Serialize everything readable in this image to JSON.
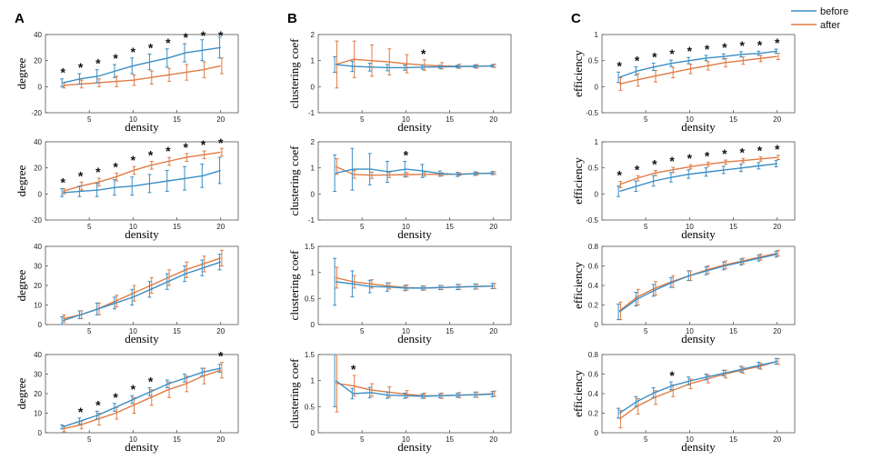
{
  "figure": {
    "panel_labels": [
      "A",
      "B",
      "C"
    ],
    "legend": [
      {
        "label": "before",
        "color": "#3b8ec4"
      },
      {
        "label": "after",
        "color": "#e07b45"
      }
    ]
  },
  "chart_data": [
    {
      "type": "line",
      "row": 0,
      "col": 0,
      "xlabel": "density",
      "ylabel": "degree",
      "ylim": [
        -20,
        40
      ],
      "yticks": [
        -20,
        0,
        20,
        40
      ],
      "xticks": [
        5,
        10,
        15,
        20
      ],
      "x": [
        2,
        4,
        6,
        8,
        10,
        12,
        14,
        16,
        18,
        20
      ],
      "series": [
        {
          "name": "before",
          "values": [
            3,
            6,
            8,
            12,
            16,
            19,
            22,
            26,
            28,
            30
          ],
          "err": [
            3,
            4,
            5,
            5,
            6,
            6,
            7,
            7,
            8,
            8
          ]
        },
        {
          "name": "after",
          "values": [
            1,
            2,
            3,
            4,
            5,
            7,
            9,
            11,
            13,
            16
          ],
          "err": [
            2,
            3,
            3,
            4,
            4,
            5,
            5,
            6,
            6,
            6
          ]
        }
      ],
      "stars": [
        2,
        4,
        6,
        8,
        10,
        12,
        14,
        16,
        18,
        20
      ]
    },
    {
      "type": "line",
      "row": 0,
      "col": 1,
      "xlabel": "density",
      "ylabel": "clustering coef",
      "ylim": [
        -1,
        2
      ],
      "yticks": [
        -1,
        0,
        1,
        2
      ],
      "xticks": [
        5,
        10,
        15,
        20
      ],
      "x": [
        2,
        4,
        6,
        8,
        10,
        12,
        14,
        16,
        18,
        20
      ],
      "series": [
        {
          "name": "before",
          "values": [
            0.85,
            0.78,
            0.75,
            0.73,
            0.73,
            0.75,
            0.76,
            0.77,
            0.78,
            0.8
          ],
          "err": [
            0.3,
            0.2,
            0.15,
            0.12,
            0.1,
            0.08,
            0.06,
            0.05,
            0.05,
            0.05
          ]
        },
        {
          "name": "after",
          "values": [
            0.85,
            1.05,
            1.0,
            0.95,
            0.88,
            0.83,
            0.8,
            0.78,
            0.78,
            0.8
          ],
          "err": [
            0.9,
            0.7,
            0.6,
            0.5,
            0.35,
            0.2,
            0.12,
            0.08,
            0.07,
            0.06
          ]
        }
      ],
      "stars": [
        12
      ]
    },
    {
      "type": "line",
      "row": 0,
      "col": 2,
      "xlabel": "density",
      "ylabel": "efficiency",
      "ylim": [
        -0.5,
        1
      ],
      "yticks": [
        -0.5,
        0,
        0.5,
        1
      ],
      "xticks": [
        5,
        10,
        15,
        20
      ],
      "x": [
        2,
        4,
        6,
        8,
        10,
        12,
        14,
        16,
        18,
        20
      ],
      "series": [
        {
          "name": "before",
          "values": [
            0.18,
            0.3,
            0.38,
            0.45,
            0.5,
            0.55,
            0.58,
            0.62,
            0.64,
            0.68
          ],
          "err": [
            0.1,
            0.08,
            0.07,
            0.06,
            0.06,
            0.05,
            0.05,
            0.05,
            0.04,
            0.04
          ]
        },
        {
          "name": "after",
          "values": [
            0.05,
            0.13,
            0.2,
            0.27,
            0.34,
            0.4,
            0.46,
            0.5,
            0.54,
            0.58
          ],
          "err": [
            0.12,
            0.12,
            0.11,
            0.1,
            0.09,
            0.08,
            0.08,
            0.07,
            0.06,
            0.06
          ]
        }
      ],
      "stars": [
        2,
        4,
        6,
        8,
        10,
        12,
        14,
        16,
        18,
        20
      ]
    },
    {
      "type": "line",
      "row": 1,
      "col": 0,
      "xlabel": "density",
      "ylabel": "degree",
      "ylim": [
        -20,
        40
      ],
      "yticks": [
        -20,
        0,
        20,
        40
      ],
      "xticks": [
        5,
        10,
        15,
        20
      ],
      "x": [
        2,
        4,
        6,
        8,
        10,
        12,
        14,
        16,
        18,
        20
      ],
      "series": [
        {
          "name": "before",
          "values": [
            1,
            2,
            3,
            5,
            6,
            8,
            10,
            12,
            14,
            18
          ],
          "err": [
            3,
            4,
            5,
            6,
            7,
            7,
            8,
            9,
            9,
            10
          ]
        },
        {
          "name": "after",
          "values": [
            2,
            6,
            9,
            13,
            18,
            22,
            25,
            28,
            30,
            32
          ],
          "err": [
            2,
            3,
            3,
            3,
            3,
            3,
            3,
            3,
            3,
            3
          ]
        }
      ],
      "stars": [
        2,
        4,
        6,
        8,
        10,
        12,
        14,
        16,
        18,
        20
      ]
    },
    {
      "type": "line",
      "row": 1,
      "col": 1,
      "xlabel": "density",
      "ylabel": "clustering coef",
      "ylim": [
        -1,
        2
      ],
      "yticks": [
        -1,
        0,
        1,
        2
      ],
      "xticks": [
        5,
        10,
        15,
        20
      ],
      "x": [
        2,
        4,
        6,
        8,
        10,
        12,
        14,
        16,
        18,
        20
      ],
      "series": [
        {
          "name": "before",
          "values": [
            0.8,
            0.95,
            0.95,
            0.85,
            0.95,
            0.88,
            0.78,
            0.75,
            0.78,
            0.8
          ],
          "err": [
            0.7,
            0.8,
            0.6,
            0.4,
            0.3,
            0.25,
            0.1,
            0.08,
            0.07,
            0.06
          ]
        },
        {
          "name": "after",
          "values": [
            1.05,
            0.75,
            0.72,
            0.73,
            0.74,
            0.75,
            0.75,
            0.76,
            0.78,
            0.8
          ],
          "err": [
            0.3,
            0.15,
            0.12,
            0.1,
            0.08,
            0.07,
            0.06,
            0.05,
            0.05,
            0.05
          ]
        }
      ],
      "stars": [
        10
      ]
    },
    {
      "type": "line",
      "row": 1,
      "col": 2,
      "xlabel": "density",
      "ylabel": "efficiency",
      "ylim": [
        -0.5,
        1
      ],
      "yticks": [
        -0.5,
        0,
        0.5,
        1
      ],
      "xticks": [
        5,
        10,
        15,
        20
      ],
      "x": [
        2,
        4,
        6,
        8,
        10,
        12,
        14,
        16,
        18,
        20
      ],
      "series": [
        {
          "name": "before",
          "values": [
            0.05,
            0.15,
            0.25,
            0.32,
            0.38,
            0.42,
            0.46,
            0.5,
            0.54,
            0.58
          ],
          "err": [
            0.1,
            0.1,
            0.1,
            0.09,
            0.08,
            0.08,
            0.07,
            0.07,
            0.06,
            0.06
          ]
        },
        {
          "name": "after",
          "values": [
            0.18,
            0.3,
            0.4,
            0.46,
            0.52,
            0.57,
            0.61,
            0.64,
            0.67,
            0.7
          ],
          "err": [
            0.06,
            0.05,
            0.05,
            0.05,
            0.04,
            0.04,
            0.04,
            0.04,
            0.04,
            0.04
          ]
        }
      ],
      "stars": [
        2,
        4,
        6,
        8,
        10,
        12,
        14,
        16,
        18,
        20
      ]
    },
    {
      "type": "line",
      "row": 2,
      "col": 0,
      "xlabel": "density",
      "ylabel": "degree",
      "ylim": [
        0,
        40
      ],
      "yticks": [
        0,
        10,
        20,
        30,
        40
      ],
      "xticks": [
        5,
        10,
        15,
        20
      ],
      "x": [
        2,
        4,
        6,
        8,
        10,
        12,
        14,
        16,
        18,
        20
      ],
      "series": [
        {
          "name": "before",
          "values": [
            2,
            5,
            8,
            11,
            14,
            18,
            22,
            26,
            29,
            32
          ],
          "err": [
            2,
            2,
            3,
            3,
            4,
            4,
            4,
            4,
            4,
            4
          ]
        },
        {
          "name": "after",
          "values": [
            3,
            5,
            8,
            12,
            16,
            20,
            24,
            28,
            31,
            34
          ],
          "err": [
            2,
            2,
            3,
            3,
            4,
            4,
            4,
            4,
            4,
            4
          ]
        }
      ],
      "stars": []
    },
    {
      "type": "line",
      "row": 2,
      "col": 1,
      "xlabel": "density",
      "ylabel": "clustering coef",
      "ylim": [
        0,
        1.5
      ],
      "yticks": [
        0,
        0.5,
        1,
        1.5
      ],
      "xticks": [
        5,
        10,
        15,
        20
      ],
      "x": [
        2,
        4,
        6,
        8,
        10,
        12,
        14,
        16,
        18,
        20
      ],
      "series": [
        {
          "name": "before",
          "values": [
            0.82,
            0.78,
            0.73,
            0.72,
            0.7,
            0.7,
            0.71,
            0.72,
            0.73,
            0.74
          ],
          "err": [
            0.45,
            0.25,
            0.12,
            0.08,
            0.05,
            0.04,
            0.04,
            0.05,
            0.05,
            0.05
          ]
        },
        {
          "name": "after",
          "values": [
            0.9,
            0.82,
            0.78,
            0.74,
            0.71,
            0.7,
            0.71,
            0.72,
            0.73,
            0.74
          ],
          "err": [
            0.2,
            0.12,
            0.08,
            0.06,
            0.05,
            0.04,
            0.04,
            0.05,
            0.05,
            0.05
          ]
        }
      ],
      "stars": []
    },
    {
      "type": "line",
      "row": 2,
      "col": 2,
      "xlabel": "density",
      "ylabel": "efficiency",
      "ylim": [
        0,
        0.8
      ],
      "yticks": [
        0,
        0.2,
        0.4,
        0.6,
        0.8
      ],
      "xticks": [
        5,
        10,
        15,
        20
      ],
      "x": [
        2,
        4,
        6,
        8,
        10,
        12,
        14,
        16,
        18,
        20
      ],
      "series": [
        {
          "name": "before",
          "values": [
            0.13,
            0.26,
            0.35,
            0.43,
            0.5,
            0.55,
            0.6,
            0.64,
            0.68,
            0.72
          ],
          "err": [
            0.08,
            0.07,
            0.06,
            0.05,
            0.05,
            0.04,
            0.04,
            0.03,
            0.03,
            0.03
          ]
        },
        {
          "name": "after",
          "values": [
            0.14,
            0.28,
            0.37,
            0.44,
            0.5,
            0.56,
            0.61,
            0.65,
            0.69,
            0.73
          ],
          "err": [
            0.09,
            0.08,
            0.07,
            0.06,
            0.05,
            0.04,
            0.04,
            0.03,
            0.03,
            0.03
          ]
        }
      ],
      "stars": []
    },
    {
      "type": "line",
      "row": 3,
      "col": 0,
      "xlabel": "density",
      "ylabel": "degree",
      "ylim": [
        0,
        40
      ],
      "yticks": [
        0,
        10,
        20,
        30,
        40
      ],
      "xticks": [
        5,
        10,
        15,
        20
      ],
      "x": [
        2,
        4,
        6,
        8,
        10,
        12,
        14,
        16,
        18,
        20
      ],
      "series": [
        {
          "name": "before",
          "values": [
            3,
            6,
            9,
            13,
            17,
            21,
            25,
            28,
            31,
            33
          ],
          "err": [
            1,
            1.5,
            2,
            2,
            2,
            2,
            2,
            2,
            2,
            2
          ]
        },
        {
          "name": "after",
          "values": [
            2,
            4,
            7,
            10,
            14,
            18,
            22,
            25,
            29,
            32
          ],
          "err": [
            1.5,
            2,
            3,
            3,
            4,
            4,
            4,
            4,
            4,
            4
          ]
        }
      ],
      "stars": [
        4,
        6,
        8,
        10,
        12,
        20
      ]
    },
    {
      "type": "line",
      "row": 3,
      "col": 1,
      "xlabel": "density",
      "ylabel": "clustering coef",
      "ylim": [
        0,
        1.5
      ],
      "yticks": [
        0,
        0.5,
        1,
        1.5
      ],
      "xticks": [
        5,
        10,
        15,
        20
      ],
      "x": [
        2,
        4,
        6,
        8,
        10,
        12,
        14,
        16,
        18,
        20
      ],
      "series": [
        {
          "name": "before",
          "values": [
            1.0,
            0.75,
            0.77,
            0.72,
            0.71,
            0.7,
            0.71,
            0.72,
            0.73,
            0.74
          ],
          "err": [
            0.5,
            0.1,
            0.1,
            0.06,
            0.05,
            0.04,
            0.04,
            0.04,
            0.05,
            0.05
          ]
        },
        {
          "name": "after",
          "values": [
            0.95,
            0.9,
            0.82,
            0.78,
            0.74,
            0.71,
            0.71,
            0.72,
            0.73,
            0.75
          ],
          "err": [
            0.55,
            0.2,
            0.12,
            0.1,
            0.07,
            0.05,
            0.05,
            0.05,
            0.05,
            0.05
          ]
        }
      ],
      "stars": [
        4
      ]
    },
    {
      "type": "line",
      "row": 3,
      "col": 2,
      "xlabel": "density",
      "ylabel": "efficiency",
      "ylim": [
        0,
        0.8
      ],
      "yticks": [
        0,
        0.2,
        0.4,
        0.6,
        0.8
      ],
      "xticks": [
        5,
        10,
        15,
        20
      ],
      "x": [
        2,
        4,
        6,
        8,
        10,
        12,
        14,
        16,
        18,
        20
      ],
      "series": [
        {
          "name": "before",
          "values": [
            0.2,
            0.32,
            0.41,
            0.48,
            0.53,
            0.57,
            0.61,
            0.65,
            0.69,
            0.73
          ],
          "err": [
            0.05,
            0.05,
            0.05,
            0.04,
            0.04,
            0.03,
            0.03,
            0.03,
            0.03,
            0.03
          ]
        },
        {
          "name": "after",
          "values": [
            0.14,
            0.27,
            0.36,
            0.43,
            0.5,
            0.55,
            0.6,
            0.64,
            0.68,
            0.73
          ],
          "err": [
            0.09,
            0.08,
            0.07,
            0.06,
            0.05,
            0.04,
            0.04,
            0.03,
            0.03,
            0.03
          ]
        }
      ],
      "stars": [
        8
      ]
    }
  ]
}
